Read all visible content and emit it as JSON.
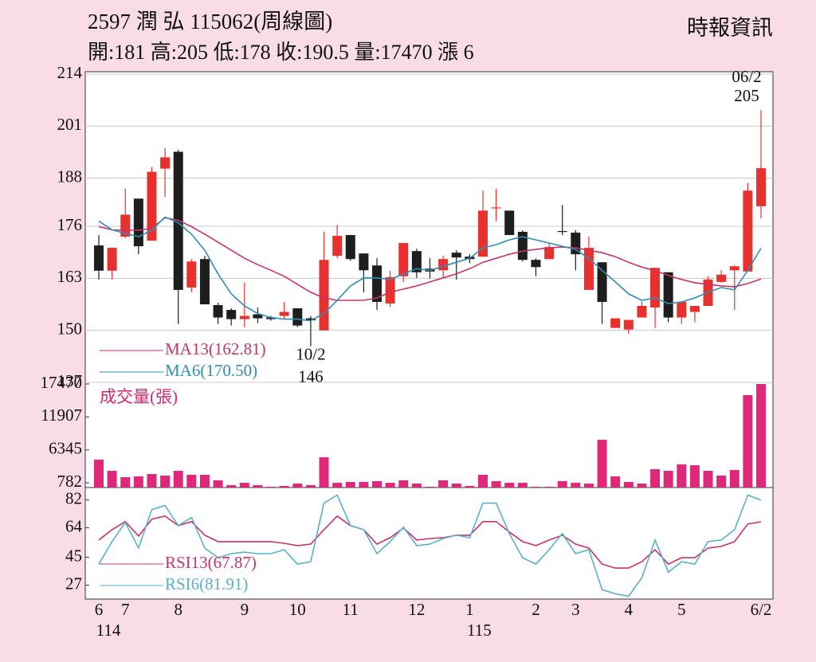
{
  "chart_data": [
    {
      "type": "candlestick",
      "title": "2597  潤 弘 115062(周線圖)",
      "subtitle": "開:181 高:205 低:178 收:190.5 量:17470 漲 6",
      "source": "時報資訊",
      "categories": [
        "6",
        null,
        "7",
        null,
        null,
        null,
        "8",
        null,
        null,
        null,
        null,
        "9",
        null,
        null,
        null,
        "10",
        null,
        null,
        null,
        "11",
        null,
        null,
        null,
        null,
        "12",
        null,
        null,
        null,
        "1",
        null,
        null,
        null,
        null,
        "2",
        null,
        null,
        "3",
        null,
        null,
        null,
        "4",
        null,
        null,
        null,
        "5",
        null,
        null,
        null,
        null,
        null,
        "6/2"
      ],
      "category_years": [
        "114",
        null,
        null,
        null,
        null,
        null,
        null,
        null,
        null,
        null,
        null,
        null,
        null,
        null,
        null,
        null,
        null,
        null,
        null,
        null,
        null,
        null,
        null,
        null,
        null,
        null,
        null,
        null,
        "115",
        null,
        null,
        null,
        null,
        null,
        null,
        null,
        null,
        null,
        null,
        null,
        null,
        null,
        null,
        null,
        null,
        null,
        null,
        null,
        null,
        null,
        null
      ],
      "open": [
        171.2,
        164.9,
        173.4,
        182.9,
        172.4,
        190.4,
        194.6,
        160.7,
        167.8,
        156.3,
        155.1,
        152.8,
        154.0,
        153.2,
        153.6,
        155.5,
        153.0,
        150.0,
        168.6,
        173.8,
        169.2,
        166.2,
        156.7,
        163.5,
        169.8,
        165.4,
        165.0,
        169.4,
        168.4,
        168.4,
        180.5,
        179.9,
        174.6,
        167.6,
        167.8,
        174.8,
        174.4,
        160.1,
        167.0,
        150.6,
        150.2,
        153.2,
        155.7,
        164.5,
        153.2,
        154.6,
        156.1,
        162.1,
        165.0,
        164.7,
        181
      ],
      "high": [
        173.8,
        170.6,
        185.4,
        182.9,
        190.8,
        195.5,
        195.1,
        167.8,
        168.6,
        156.9,
        155.5,
        161.9,
        155.7,
        153.6,
        157.1,
        155.5,
        153.6,
        174.6,
        176.3,
        173.8,
        169.2,
        168.0,
        164.9,
        171.8,
        170.4,
        168.0,
        168.6,
        170.0,
        169.0,
        184.9,
        185.4,
        179.9,
        175.0,
        168.0,
        171.6,
        181.3,
        175.0,
        173.4,
        167.0,
        153.0,
        152.6,
        157.1,
        165.6,
        164.5,
        157.1,
        156.1,
        163.5,
        165.0,
        166.2,
        186.8,
        205
      ],
      "low": [
        162.7,
        162.7,
        173.0,
        169.0,
        172.4,
        183.3,
        151.6,
        159.5,
        156.5,
        151.6,
        151.2,
        150.8,
        151.8,
        152.4,
        152.8,
        150.8,
        146,
        150.0,
        168.0,
        167.4,
        159.5,
        155.1,
        155.9,
        162.1,
        163.1,
        163.0,
        163.3,
        162.7,
        166.8,
        168.4,
        177.3,
        173.8,
        167.2,
        163.5,
        167.8,
        173.8,
        165.0,
        160.1,
        151.6,
        150.6,
        149.2,
        153.2,
        150.6,
        152.0,
        151.6,
        152.0,
        156.1,
        161.9,
        155.1,
        164.7,
        178
      ],
      "close": [
        164.9,
        170.6,
        178.9,
        171.0,
        189.6,
        193.2,
        160.1,
        167.2,
        156.5,
        153.2,
        152.8,
        153.6,
        153.0,
        152.8,
        154.6,
        151.2,
        152.5,
        167.6,
        173.6,
        167.8,
        165.0,
        157.1,
        163.3,
        171.8,
        164.5,
        164.7,
        167.8,
        168.2,
        167.8,
        179.9,
        180.7,
        173.8,
        167.6,
        165.8,
        170.8,
        174.6,
        169.0,
        170.6,
        157.1,
        153.0,
        152.6,
        156.1,
        165.6,
        153.2,
        157.1,
        156.1,
        162.7,
        163.9,
        166.0,
        184.9,
        190.5
      ],
      "up_color": "#e8312f",
      "down_color": "#1e1e1e",
      "ylim": [
        137,
        214.6
      ],
      "yticks": [
        137,
        150,
        163,
        176,
        188,
        201,
        214
      ],
      "grid": true,
      "series": [
        {
          "name": "MA13(162.81)",
          "color": "#c8336a",
          "values": [
            175.9,
            175.1,
            175.0,
            175.0,
            175.5,
            178.1,
            177.5,
            175.9,
            174.0,
            172.0,
            170.0,
            168.0,
            166.4,
            165.0,
            163.5,
            161.5,
            159.5,
            158.1,
            157.5,
            157.5,
            157.5,
            158.1,
            159.5,
            160.3,
            161.1,
            162.1,
            163.1,
            164.1,
            165.4,
            167.0,
            168.0,
            169.0,
            169.8,
            170.2,
            170.6,
            170.8,
            170.6,
            170.0,
            169.4,
            168.4,
            167.0,
            165.8,
            164.9,
            163.7,
            162.7,
            161.9,
            161.5,
            161.1,
            160.9,
            161.7,
            162.81
          ]
        },
        {
          "name": "MA6(170.50)",
          "color": "#2f8fb0",
          "values": [
            177.3,
            175.1,
            174.2,
            173.4,
            175.0,
            178.3,
            176.9,
            174.0,
            170.0,
            164.1,
            159.1,
            156.1,
            154.2,
            153.2,
            152.8,
            152.8,
            152.4,
            154.2,
            157.5,
            161.1,
            163.1,
            163.1,
            162.7,
            164.1,
            165.4,
            165.0,
            166.0,
            167.0,
            168.0,
            170.6,
            171.4,
            172.6,
            173.4,
            172.6,
            171.8,
            171.0,
            170.2,
            168.0,
            165.0,
            162.1,
            159.1,
            157.5,
            158.1,
            156.7,
            157.1,
            158.1,
            159.5,
            160.7,
            160.1,
            165.0,
            170.5
          ]
        }
      ],
      "annotations": [
        {
          "date": "06/2",
          "value": 205
        },
        {
          "date": "10/2",
          "value": 146
        }
      ]
    },
    {
      "type": "bar",
      "title": "成交量(張)",
      "color": "#e0287a",
      "values": [
        4700,
        2820,
        1750,
        1880,
        2280,
        2020,
        2820,
        2150,
        2150,
        1210,
        400,
        800,
        400,
        130,
        270,
        670,
        400,
        5110,
        800,
        940,
        940,
        1080,
        800,
        1210,
        670,
        130,
        1210,
        670,
        270,
        2150,
        1080,
        800,
        800,
        130,
        130,
        1080,
        800,
        670,
        8060,
        1880,
        940,
        670,
        3090,
        2820,
        3900,
        3760,
        2820,
        2020,
        2960,
        15590,
        17470
      ],
      "ylim": [
        0,
        17470
      ],
      "yticks": [
        782,
        6345,
        11907,
        17470
      ]
    },
    {
      "type": "line",
      "ylim": [
        18,
        90
      ],
      "yticks": [
        27,
        45,
        64,
        82
      ],
      "series": [
        {
          "name": "RSI13(67.87)",
          "color": "#c8336a",
          "values": [
            56.1,
            62.8,
            68.0,
            58.7,
            69.6,
            71.6,
            65.4,
            68.0,
            59.2,
            55.1,
            55.1,
            55.1,
            55.1,
            55.1,
            54.0,
            52.5,
            53.5,
            62.8,
            71.6,
            65.4,
            62.8,
            53.5,
            57.6,
            63.9,
            56.1,
            57.1,
            57.6,
            59.2,
            59.2,
            68.0,
            68.0,
            61.3,
            55.1,
            52.5,
            56.1,
            59.2,
            53.5,
            50.9,
            40.6,
            38.0,
            38.0,
            42.1,
            49.9,
            40.6,
            44.7,
            44.7,
            50.9,
            52.0,
            55.1,
            66.5,
            67.87
          ]
        },
        {
          "name": "RSI6(81.91)",
          "color": "#5ab0c8",
          "values": [
            40.6,
            55.1,
            67.5,
            50.9,
            75.8,
            78.4,
            65.4,
            70.6,
            50.9,
            44.7,
            47.3,
            48.3,
            47.3,
            47.3,
            49.9,
            40.6,
            42.1,
            79.9,
            85.1,
            65.4,
            62.8,
            47.3,
            55.1,
            64.4,
            52.5,
            53.5,
            57.1,
            59.2,
            57.6,
            79.9,
            79.9,
            60.2,
            44.7,
            40.6,
            49.9,
            60.2,
            47.3,
            49.9,
            24.0,
            21.4,
            19.8,
            31.7,
            56.1,
            35.4,
            42.1,
            40.6,
            55.1,
            56.1,
            62.8,
            85.1,
            81.91
          ]
        }
      ]
    }
  ]
}
